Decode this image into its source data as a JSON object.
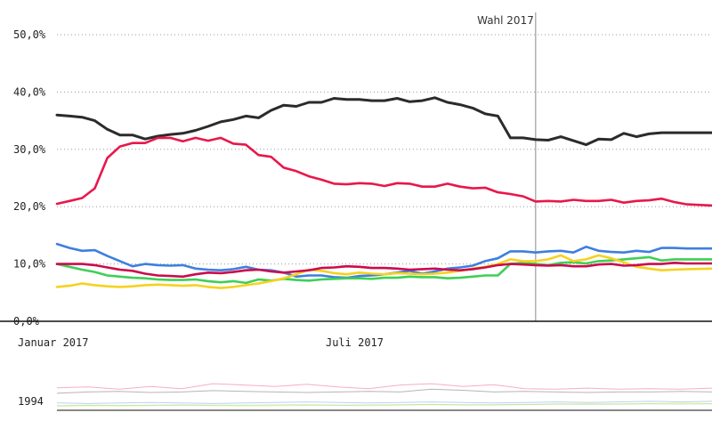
{
  "chart_data": {
    "type": "line",
    "yticks": [
      "50,0%",
      "40,0%",
      "30,0%",
      "20,0%",
      "10,0%",
      "0,0%"
    ],
    "ytick_values": [
      50,
      40,
      30,
      20,
      10,
      0
    ],
    "ylim": [
      0,
      50
    ],
    "x_range": [
      "2017-01-01",
      "2017-12-31"
    ],
    "xticks": [
      {
        "label": "Januar 2017",
        "date": "2017-01-01"
      },
      {
        "label": "Juli 2017",
        "date": "2017-07-01"
      }
    ],
    "annotation": {
      "label": "Wahl 2017",
      "date": "2017-09-24"
    },
    "grid": true,
    "x": [
      "2017-01-01",
      "2017-01-08",
      "2017-01-15",
      "2017-01-22",
      "2017-01-29",
      "2017-02-05",
      "2017-02-12",
      "2017-02-19",
      "2017-02-26",
      "2017-03-05",
      "2017-03-12",
      "2017-03-19",
      "2017-03-26",
      "2017-04-02",
      "2017-04-09",
      "2017-04-16",
      "2017-04-23",
      "2017-04-30",
      "2017-05-07",
      "2017-05-14",
      "2017-05-21",
      "2017-05-28",
      "2017-06-04",
      "2017-06-11",
      "2017-06-18",
      "2017-06-25",
      "2017-07-02",
      "2017-07-09",
      "2017-07-16",
      "2017-07-23",
      "2017-07-30",
      "2017-08-06",
      "2017-08-13",
      "2017-08-20",
      "2017-08-27",
      "2017-09-03",
      "2017-09-10",
      "2017-09-17",
      "2017-09-24",
      "2017-10-01",
      "2017-10-08",
      "2017-10-15",
      "2017-10-22",
      "2017-10-29",
      "2017-11-05",
      "2017-11-12",
      "2017-11-19",
      "2017-11-26",
      "2017-12-03",
      "2017-12-10",
      "2017-12-17",
      "2017-12-31"
    ],
    "series": [
      {
        "color": "#2b2b2b",
        "values": [
          36,
          35.8,
          35.6,
          35,
          33.5,
          32.5,
          32.5,
          31.8,
          32.3,
          32.6,
          32.8,
          33.3,
          34,
          34.8,
          35.2,
          35.8,
          35.5,
          36.8,
          37.7,
          37.5,
          38.2,
          38.2,
          38.9,
          38.7,
          38.7,
          38.5,
          38.5,
          38.9,
          38.3,
          38.5,
          39,
          38.2,
          37.8,
          37.2,
          36.2,
          35.8,
          32,
          32,
          31.7,
          31.6,
          32.2,
          31.5,
          30.8,
          31.8,
          31.7,
          32.8,
          32.2,
          32.7,
          32.9,
          32.9,
          32.9,
          32.9
        ]
      },
      {
        "color": "#e8174b",
        "values": [
          20.5,
          21,
          21.5,
          23.2,
          28.5,
          30.5,
          31.1,
          31.1,
          32,
          32,
          31.4,
          32,
          31.5,
          32,
          31,
          30.8,
          29,
          28.7,
          26.8,
          26.2,
          25.3,
          24.7,
          24,
          23.9,
          24.1,
          24,
          23.6,
          24.1,
          24,
          23.5,
          23.5,
          24,
          23.5,
          23.2,
          23.3,
          22.5,
          22.2,
          21.8,
          20.9,
          21,
          20.9,
          21.2,
          21,
          21,
          21.2,
          20.7,
          21,
          21.1,
          21.4,
          20.8,
          20.4,
          20.2
        ]
      },
      {
        "color": "#3d7fe0",
        "values": [
          13.5,
          12.8,
          12.3,
          12.4,
          11.4,
          10.5,
          9.6,
          10,
          9.8,
          9.7,
          9.8,
          9.2,
          9,
          8.9,
          9.1,
          9.5,
          9,
          8.9,
          8.5,
          7.8,
          8,
          8,
          7.7,
          7.6,
          7.9,
          8,
          8.2,
          8.5,
          8.8,
          8.3,
          8.7,
          9.2,
          9.4,
          9.7,
          10.5,
          11,
          12.2,
          12.2,
          12,
          12.2,
          12.3,
          12,
          13,
          12.3,
          12.1,
          12,
          12.3,
          12.1,
          12.8,
          12.8,
          12.7,
          12.7
        ]
      },
      {
        "color": "#3fcf55",
        "values": [
          10,
          9.5,
          9,
          8.6,
          8,
          7.8,
          7.6,
          7.5,
          7.3,
          7.2,
          7.2,
          7.3,
          7,
          6.8,
          7,
          6.7,
          7.3,
          7.1,
          7.4,
          7.2,
          7.1,
          7.3,
          7.4,
          7.5,
          7.5,
          7.4,
          7.6,
          7.6,
          7.8,
          7.7,
          7.7,
          7.5,
          7.6,
          7.8,
          8,
          8,
          10,
          10.2,
          10,
          9.8,
          10.2,
          10.3,
          10.1,
          10.5,
          10.6,
          10.8,
          11,
          11.2,
          10.6,
          10.8,
          10.8,
          10.8
        ]
      },
      {
        "color": "#f5d21f",
        "values": [
          6,
          6.2,
          6.6,
          6.3,
          6.1,
          6,
          6.1,
          6.3,
          6.4,
          6.3,
          6.2,
          6.3,
          6,
          5.8,
          6,
          6.3,
          6.6,
          7,
          7.5,
          8.2,
          9,
          8.8,
          8.4,
          8.2,
          8.5,
          8.3,
          8.2,
          8.4,
          8.3,
          8.2,
          8.3,
          8.5,
          8.8,
          9.2,
          9.5,
          10,
          10.8,
          10.5,
          10.5,
          10.8,
          11.5,
          10.5,
          10.8,
          11.5,
          11,
          10.3,
          9.5,
          9.2,
          8.9,
          9,
          9.1,
          9.2
        ]
      },
      {
        "color": "#cc0b4c",
        "values": [
          10,
          10,
          10,
          9.8,
          9.4,
          9,
          8.8,
          8.3,
          8,
          7.9,
          7.8,
          8.2,
          8.5,
          8.4,
          8.6,
          8.9,
          9,
          8.7,
          8.5,
          8.7,
          8.9,
          9.3,
          9.4,
          9.6,
          9.5,
          9.3,
          9.3,
          9.2,
          9,
          9.1,
          9.2,
          9,
          8.9,
          9.1,
          9.4,
          9.8,
          10,
          9.9,
          9.8,
          9.7,
          9.8,
          9.6,
          9.6,
          9.9,
          10,
          9.7,
          9.8,
          10,
          10,
          10.2,
          10.1,
          10.1
        ]
      }
    ],
    "overview": {
      "label": "1994",
      "series": [
        {
          "color": "#e8174b",
          "values": [
            0.75,
            0.78,
            0.7,
            0.8,
            0.72,
            0.9,
            0.85,
            0.8,
            0.88,
            0.78,
            0.72,
            0.85,
            0.9,
            0.8,
            0.86,
            0.72,
            0.7,
            0.74,
            0.7,
            0.72,
            0.7,
            0.74
          ]
        },
        {
          "color": "#2b2b2b",
          "values": [
            0.55,
            0.6,
            0.62,
            0.58,
            0.6,
            0.65,
            0.62,
            0.6,
            0.58,
            0.6,
            0.62,
            0.6,
            0.7,
            0.66,
            0.6,
            0.62,
            0.6,
            0.58,
            0.6,
            0.6,
            0.62,
            0.6
          ]
        },
        {
          "color": "#3d7fe0",
          "values": [
            0.2,
            0.18,
            0.2,
            0.22,
            0.2,
            0.18,
            0.2,
            0.22,
            0.24,
            0.22,
            0.2,
            0.22,
            0.24,
            0.22,
            0.2,
            0.22,
            0.24,
            0.22,
            0.24,
            0.26,
            0.24,
            0.26
          ]
        },
        {
          "color": "#f5d21f",
          "values": [
            0.08,
            0.1,
            0.09,
            0.1,
            0.12,
            0.1,
            0.09,
            0.1,
            0.11,
            0.12,
            0.1,
            0.12,
            0.14,
            0.12,
            0.12,
            0.14,
            0.16,
            0.18,
            0.16,
            0.18,
            0.2,
            0.18
          ]
        },
        {
          "color": "#3fcf55",
          "values": [
            0.1,
            0.12,
            0.11,
            0.12,
            0.13,
            0.12,
            0.12,
            0.13,
            0.14,
            0.12,
            0.13,
            0.14,
            0.15,
            0.14,
            0.14,
            0.15,
            0.16,
            0.15,
            0.16,
            0.17,
            0.16,
            0.17
          ]
        }
      ]
    }
  }
}
